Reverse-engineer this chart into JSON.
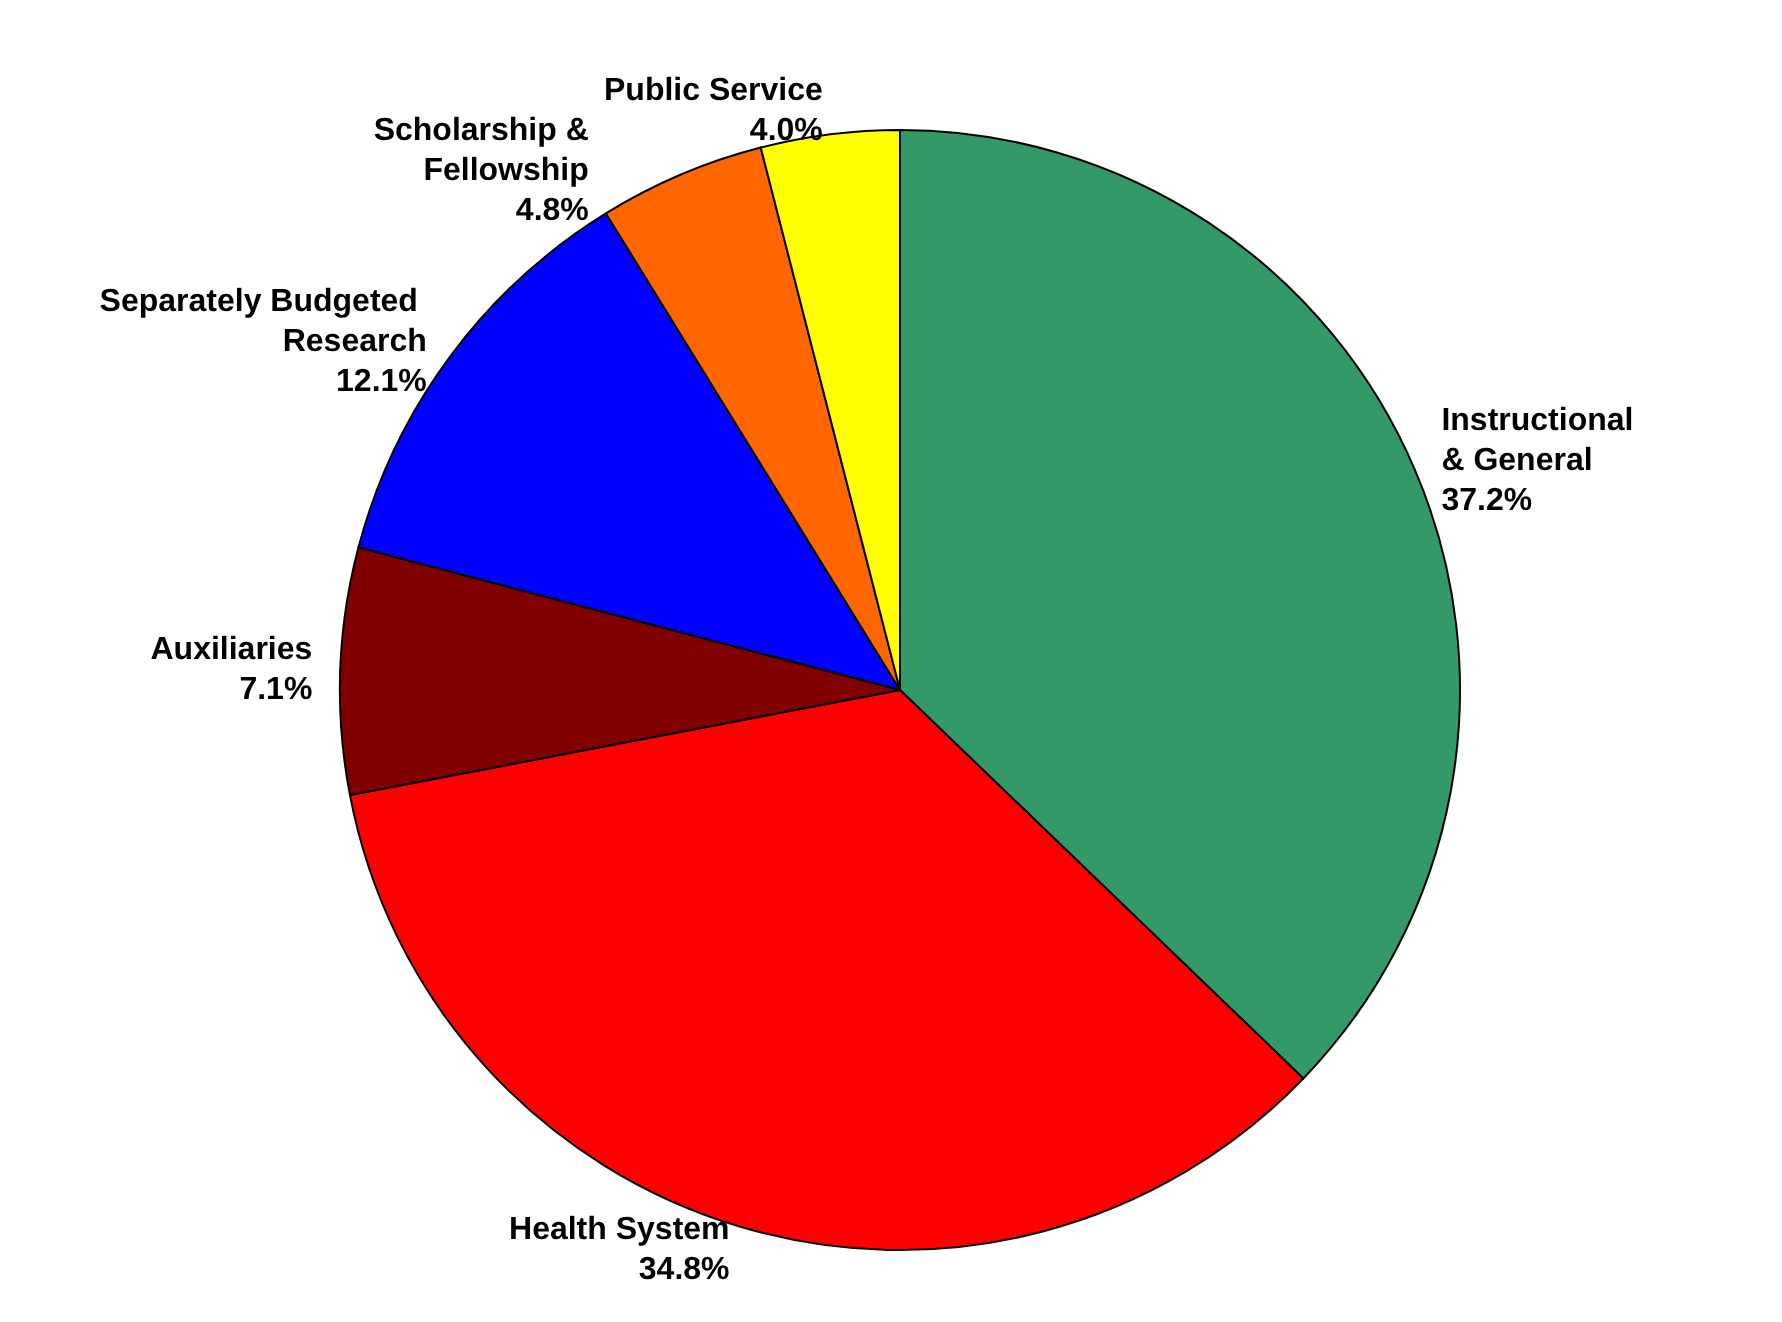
{
  "chart_data": {
    "type": "pie",
    "categories": [
      "Instructional & General",
      "Health System",
      "Auxiliaries",
      "Separately Budgeted Research",
      "Scholarship & Fellowship",
      "Public Service"
    ],
    "values": [
      37.2,
      34.8,
      7.1,
      12.1,
      4.8,
      4.0
    ],
    "colors": [
      "#339966",
      "#ff0000",
      "#800000",
      "#0000ff",
      "#ff6600",
      "#ffff00"
    ],
    "value_labels": [
      "37.2%",
      "34.8%",
      "7.1%",
      "12.1%",
      "4.8%",
      "4.0%"
    ],
    "legend": false
  }
}
